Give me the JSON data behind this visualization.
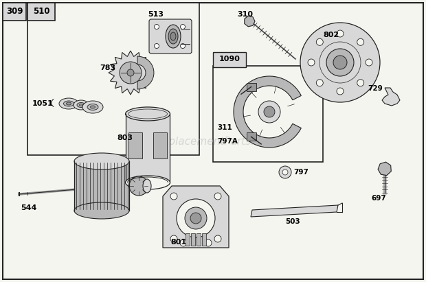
{
  "background_color": "#f5f5f0",
  "border_color": "#222222",
  "watermark": "eReplacementParts.com",
  "watermark_color": "#bbbbbb",
  "label_309": "309",
  "label_510": "510",
  "label_513": "513",
  "label_783": "783",
  "label_1051": "1051",
  "label_310": "310",
  "label_802": "802",
  "label_1090": "1090",
  "label_311": "311",
  "label_797A": "797A",
  "label_803": "803",
  "label_797": "797",
  "label_729": "729",
  "label_697": "697",
  "label_544": "544",
  "label_801": "801",
  "label_503": "503"
}
